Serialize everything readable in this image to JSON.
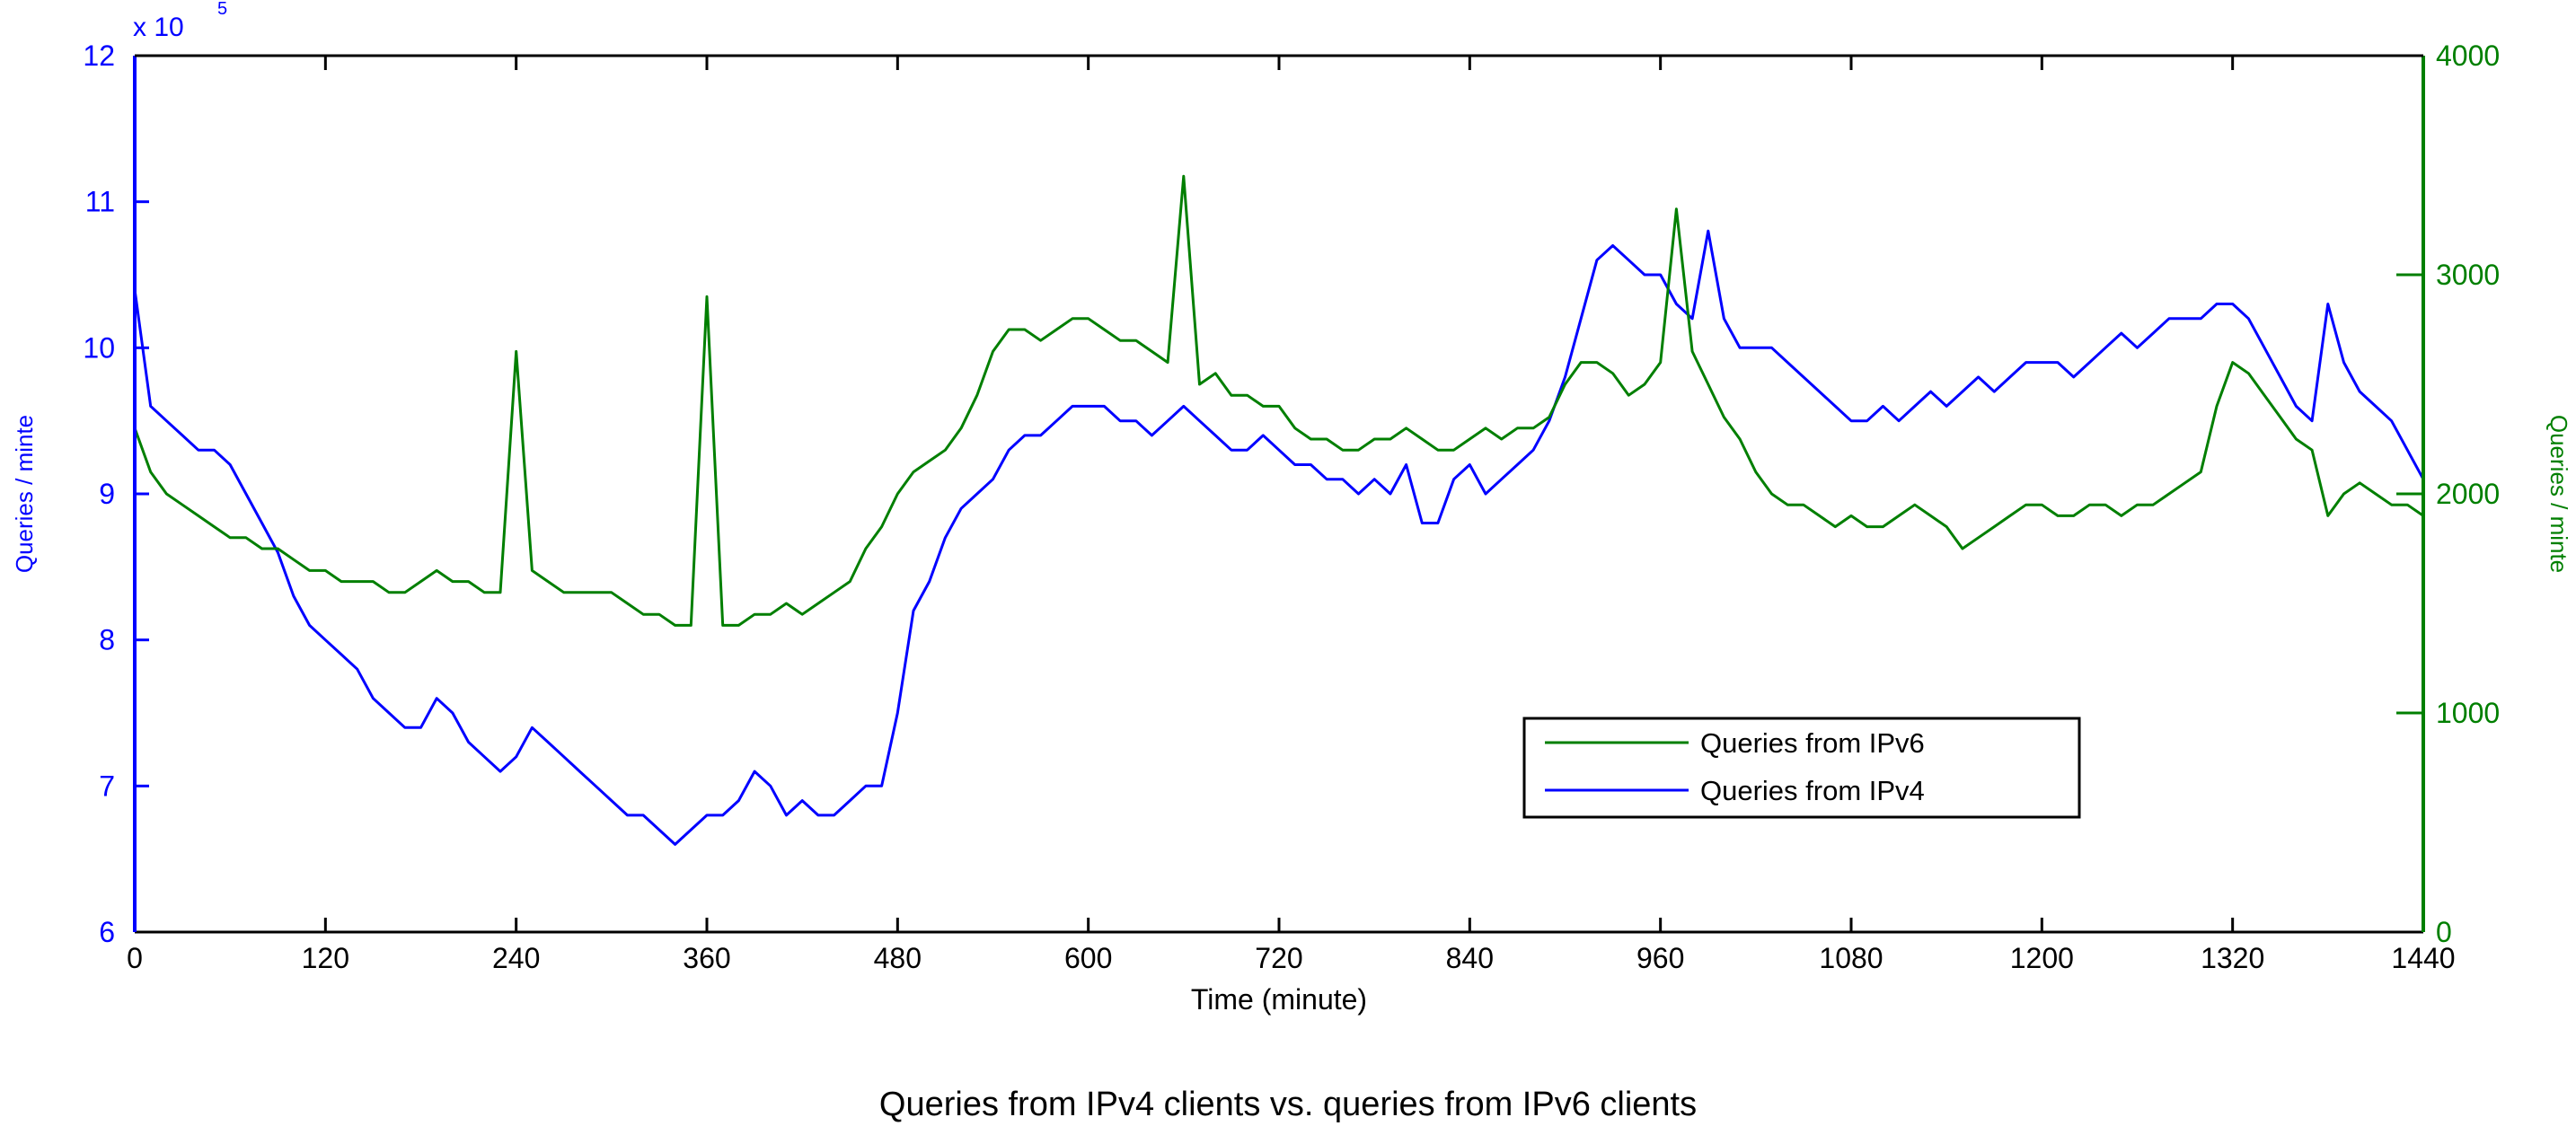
{
  "chart_data": {
    "type": "line",
    "title": "Queries from IPv4 clients vs. queries from IPv6 clients",
    "xlabel": "Time (minute)",
    "ylabel_left": "Queries / minte",
    "ylabel_right": "Queries / minte",
    "left_multiplier": "x 10",
    "left_exponent": "5",
    "xlim": [
      0,
      1440
    ],
    "ylim_left": [
      6,
      12
    ],
    "ylim_right": [
      0,
      4000
    ],
    "x_ticks": [
      "0",
      "120",
      "240",
      "360",
      "480",
      "600",
      "720",
      "840",
      "960",
      "1080",
      "1200",
      "1320",
      "1440"
    ],
    "y_ticks_left": [
      "6",
      "7",
      "8",
      "9",
      "10",
      "11",
      "12"
    ],
    "y_ticks_right": [
      "0",
      "1000",
      "2000",
      "3000",
      "4000"
    ],
    "grid": false,
    "legend_position": "lower-right",
    "colors": {
      "ipv6": "#007f00",
      "ipv4": "#0000ff"
    },
    "x": [
      0,
      10,
      20,
      30,
      40,
      50,
      60,
      70,
      80,
      90,
      100,
      110,
      120,
      130,
      140,
      150,
      160,
      170,
      180,
      190,
      200,
      210,
      220,
      230,
      240,
      250,
      260,
      270,
      280,
      290,
      300,
      310,
      320,
      330,
      340,
      350,
      360,
      370,
      380,
      390,
      400,
      410,
      420,
      430,
      440,
      450,
      460,
      470,
      480,
      490,
      500,
      510,
      520,
      530,
      540,
      550,
      560,
      570,
      580,
      590,
      600,
      610,
      620,
      630,
      640,
      650,
      660,
      670,
      680,
      690,
      700,
      710,
      720,
      730,
      740,
      750,
      760,
      770,
      780,
      790,
      800,
      810,
      820,
      830,
      840,
      850,
      860,
      870,
      880,
      890,
      900,
      910,
      920,
      930,
      940,
      950,
      960,
      970,
      980,
      990,
      1000,
      1010,
      1020,
      1030,
      1040,
      1050,
      1060,
      1070,
      1080,
      1090,
      1100,
      1110,
      1120,
      1130,
      1140,
      1150,
      1160,
      1170,
      1180,
      1190,
      1200,
      1210,
      1220,
      1230,
      1240,
      1250,
      1260,
      1270,
      1280,
      1290,
      1300,
      1310,
      1320,
      1330,
      1340,
      1350,
      1360,
      1370,
      1380,
      1390,
      1400,
      1410,
      1420,
      1430,
      1440
    ],
    "series": [
      {
        "name": "Queries from IPv6",
        "axis": "right",
        "values": [
          2300,
          2100,
          2000,
          1950,
          1900,
          1850,
          1800,
          1800,
          1750,
          1750,
          1700,
          1650,
          1650,
          1600,
          1600,
          1600,
          1550,
          1550,
          1600,
          1650,
          1600,
          1600,
          1550,
          1550,
          2650,
          1650,
          1600,
          1550,
          1550,
          1550,
          1550,
          1500,
          1450,
          1450,
          1400,
          1400,
          2900,
          1400,
          1400,
          1450,
          1450,
          1500,
          1450,
          1500,
          1550,
          1600,
          1750,
          1850,
          2000,
          2100,
          2150,
          2200,
          2300,
          2450,
          2650,
          2750,
          2750,
          2700,
          2750,
          2800,
          2800,
          2750,
          2700,
          2700,
          2650,
          2600,
          3450,
          2500,
          2550,
          2450,
          2450,
          2400,
          2400,
          2300,
          2250,
          2250,
          2200,
          2200,
          2250,
          2250,
          2300,
          2250,
          2200,
          2200,
          2250,
          2300,
          2250,
          2300,
          2300,
          2350,
          2500,
          2600,
          2600,
          2550,
          2450,
          2500,
          2600,
          3300,
          2650,
          2500,
          2350,
          2250,
          2100,
          2000,
          1950,
          1950,
          1900,
          1850,
          1900,
          1850,
          1850,
          1900,
          1950,
          1900,
          1850,
          1750,
          1800,
          1850,
          1900,
          1950,
          1950,
          1900,
          1900,
          1950,
          1950,
          1900,
          1950,
          1950,
          2000,
          2050,
          2100,
          2400,
          2600,
          2550,
          2450,
          2350,
          2250,
          2200,
          1900,
          2000,
          2050,
          2000,
          1950,
          1950,
          1900
        ]
      },
      {
        "name": "Queries from IPv4",
        "axis": "left",
        "values": [
          10.4,
          9.6,
          9.5,
          9.4,
          9.3,
          9.3,
          9.2,
          9.0,
          8.8,
          8.6,
          8.3,
          8.1,
          8.0,
          7.9,
          7.8,
          7.6,
          7.5,
          7.4,
          7.4,
          7.6,
          7.5,
          7.3,
          7.2,
          7.1,
          7.2,
          7.4,
          7.3,
          7.2,
          7.1,
          7.0,
          6.9,
          6.8,
          6.8,
          6.7,
          6.6,
          6.7,
          6.8,
          6.8,
          6.9,
          7.1,
          7.0,
          6.8,
          6.9,
          6.8,
          6.8,
          6.9,
          7.0,
          7.0,
          7.5,
          8.2,
          8.4,
          8.7,
          8.9,
          9.0,
          9.1,
          9.3,
          9.4,
          9.4,
          9.5,
          9.6,
          9.6,
          9.6,
          9.5,
          9.5,
          9.4,
          9.5,
          9.6,
          9.5,
          9.4,
          9.3,
          9.3,
          9.4,
          9.3,
          9.2,
          9.2,
          9.1,
          9.1,
          9.0,
          9.1,
          9.0,
          9.2,
          8.8,
          8.8,
          9.1,
          9.2,
          9.0,
          9.1,
          9.2,
          9.3,
          9.5,
          9.8,
          10.2,
          10.6,
          10.7,
          10.6,
          10.5,
          10.5,
          10.3,
          10.2,
          10.8,
          10.2,
          10.0,
          10.0,
          10.0,
          9.9,
          9.8,
          9.7,
          9.6,
          9.5,
          9.5,
          9.6,
          9.5,
          9.6,
          9.7,
          9.6,
          9.7,
          9.8,
          9.7,
          9.8,
          9.9,
          9.9,
          9.9,
          9.8,
          9.9,
          10.0,
          10.1,
          10.0,
          10.1,
          10.2,
          10.2,
          10.2,
          10.3,
          10.3,
          10.2,
          10.0,
          9.8,
          9.6,
          9.5,
          10.3,
          9.9,
          9.7,
          9.6,
          9.5,
          9.3,
          9.1
        ]
      }
    ]
  }
}
